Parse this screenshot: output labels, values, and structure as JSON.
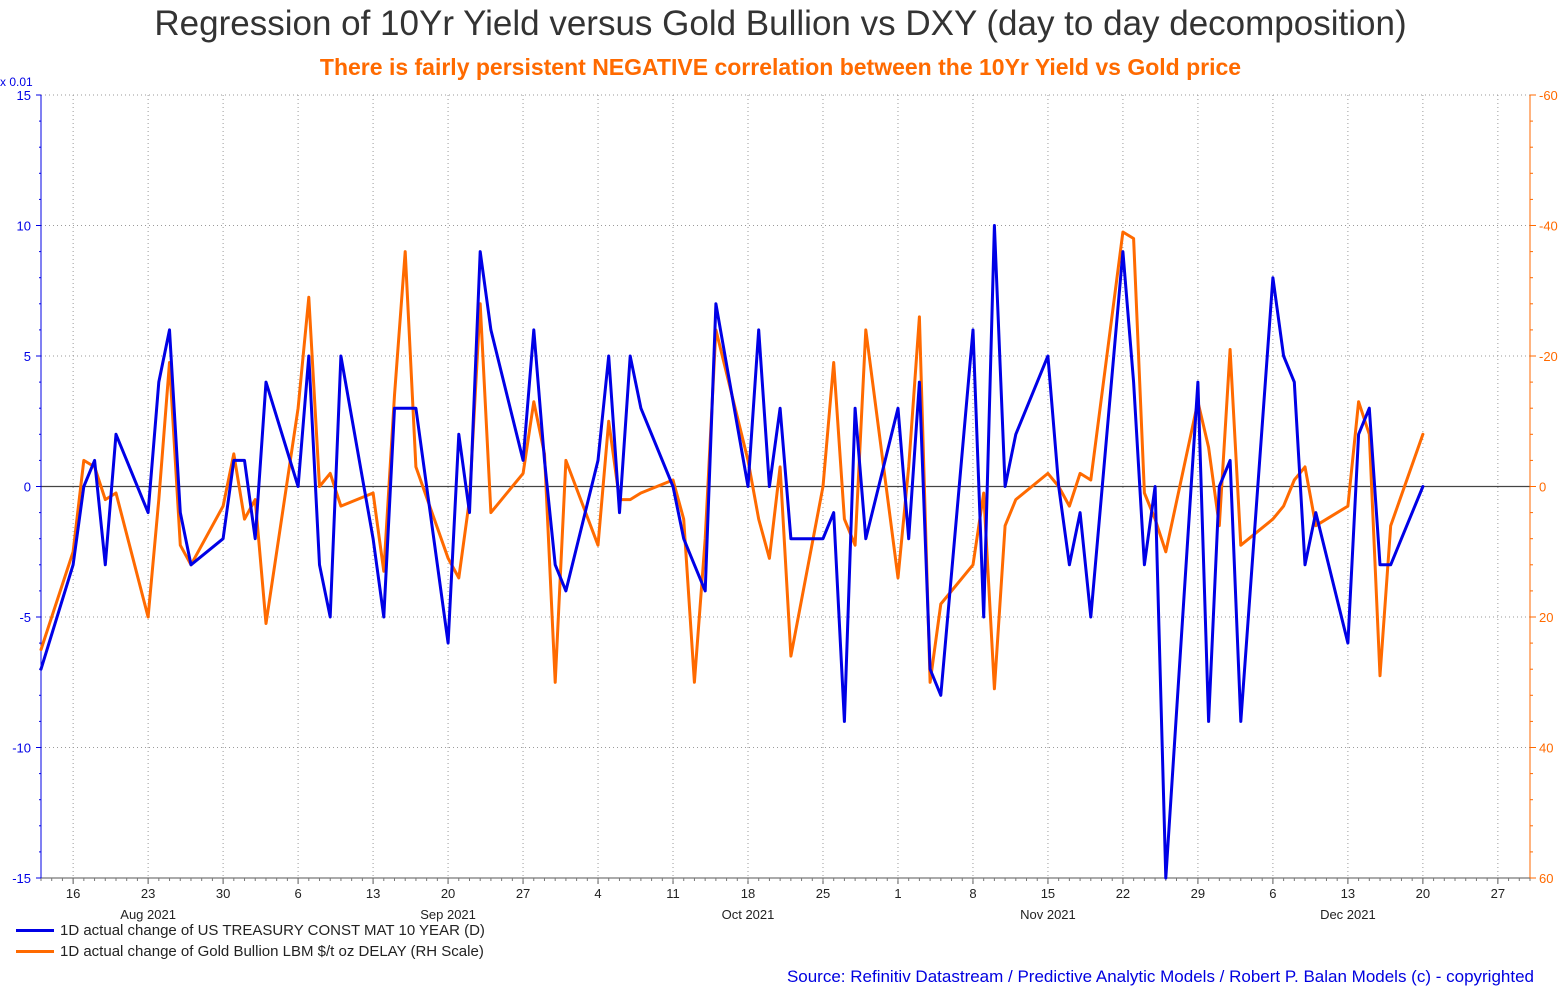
{
  "title": "Regression of 10Yr Yield versus Gold Bullion vs DXY (day to day decomposition)",
  "subtitle": "There is fairly persistent NEGATIVE correlation between the 10Yr Yield vs Gold price",
  "source": "Source: Refinitiv Datastream / Predictive Analytic Models / Robert P. Balan Models (c) - copyrighted",
  "colors": {
    "yield": "#0000e6",
    "gold": "#ff6a00",
    "grid": "#9a9a9a",
    "zero": "#444444"
  },
  "chart_data": {
    "type": "line",
    "left_axis": {
      "unit_label": "x 0.01",
      "range": [
        -15,
        15
      ],
      "ticks": [
        15,
        10,
        5,
        0,
        -5,
        -10,
        -15
      ],
      "tick_labels": [
        "15",
        "10",
        "5",
        "0",
        "-5",
        "-10",
        "-15"
      ]
    },
    "right_axis": {
      "range": [
        -60,
        60
      ],
      "inverted": true,
      "ticks": [
        -60,
        -40,
        -20,
        0,
        20,
        40,
        60
      ],
      "tick_labels": [
        "-60",
        "-40",
        "-20",
        "0",
        "20",
        "40",
        "60"
      ]
    },
    "x_axis": {
      "range": [
        "2021-08-13",
        "2021-12-30"
      ],
      "ticks": [
        {
          "date": "2021-08-16",
          "label": "16"
        },
        {
          "date": "2021-08-23",
          "label": "23"
        },
        {
          "date": "2021-08-30",
          "label": "30"
        },
        {
          "date": "2021-09-06",
          "label": "6"
        },
        {
          "date": "2021-09-13",
          "label": "13"
        },
        {
          "date": "2021-09-20",
          "label": "20"
        },
        {
          "date": "2021-09-27",
          "label": "27"
        },
        {
          "date": "2021-10-04",
          "label": "4"
        },
        {
          "date": "2021-10-11",
          "label": "11"
        },
        {
          "date": "2021-10-18",
          "label": "18"
        },
        {
          "date": "2021-10-25",
          "label": "25"
        },
        {
          "date": "2021-11-01",
          "label": "1"
        },
        {
          "date": "2021-11-08",
          "label": "8"
        },
        {
          "date": "2021-11-15",
          "label": "15"
        },
        {
          "date": "2021-11-22",
          "label": "22"
        },
        {
          "date": "2021-11-29",
          "label": "29"
        },
        {
          "date": "2021-12-06",
          "label": "6"
        },
        {
          "date": "2021-12-13",
          "label": "13"
        },
        {
          "date": "2021-12-20",
          "label": "20"
        },
        {
          "date": "2021-12-27",
          "label": "27"
        }
      ],
      "month_labels": [
        {
          "date": "2021-08-23",
          "label": "Aug 2021"
        },
        {
          "date": "2021-09-20",
          "label": "Sep 2021"
        },
        {
          "date": "2021-10-18",
          "label": "Oct 2021"
        },
        {
          "date": "2021-11-15",
          "label": "Nov 2021"
        },
        {
          "date": "2021-12-13",
          "label": "Dec 2021"
        }
      ]
    },
    "grid": true,
    "legend_position": "bottom-left",
    "series": [
      {
        "name": "1D actual change of US TREASURY CONST MAT 10 YEAR (D)",
        "axis": "left",
        "color": "#0000e6",
        "points": [
          [
            "2021-08-13",
            -7
          ],
          [
            "2021-08-16",
            -3
          ],
          [
            "2021-08-17",
            0
          ],
          [
            "2021-08-18",
            1
          ],
          [
            "2021-08-19",
            -3
          ],
          [
            "2021-08-20",
            2
          ],
          [
            "2021-08-23",
            -1
          ],
          [
            "2021-08-24",
            4
          ],
          [
            "2021-08-25",
            6
          ],
          [
            "2021-08-26",
            -1
          ],
          [
            "2021-08-27",
            -3
          ],
          [
            "2021-08-30",
            -2
          ],
          [
            "2021-08-31",
            1
          ],
          [
            "2021-09-01",
            1
          ],
          [
            "2021-09-02",
            -2
          ],
          [
            "2021-09-03",
            4
          ],
          [
            "2021-09-06",
            0
          ],
          [
            "2021-09-07",
            5
          ],
          [
            "2021-09-08",
            -3
          ],
          [
            "2021-09-09",
            -5
          ],
          [
            "2021-09-10",
            5
          ],
          [
            "2021-09-13",
            -2
          ],
          [
            "2021-09-14",
            -5
          ],
          [
            "2021-09-15",
            3
          ],
          [
            "2021-09-16",
            3
          ],
          [
            "2021-09-17",
            3
          ],
          [
            "2021-09-20",
            -6
          ],
          [
            "2021-09-21",
            2
          ],
          [
            "2021-09-22",
            -1
          ],
          [
            "2021-09-23",
            9
          ],
          [
            "2021-09-24",
            6
          ],
          [
            "2021-09-27",
            1
          ],
          [
            "2021-09-28",
            6
          ],
          [
            "2021-09-29",
            1
          ],
          [
            "2021-09-30",
            -3
          ],
          [
            "2021-10-01",
            -4
          ],
          [
            "2021-10-04",
            1
          ],
          [
            "2021-10-05",
            5
          ],
          [
            "2021-10-06",
            -1
          ],
          [
            "2021-10-07",
            5
          ],
          [
            "2021-10-08",
            3
          ],
          [
            "2021-10-11",
            0
          ],
          [
            "2021-10-12",
            -2
          ],
          [
            "2021-10-13",
            -3
          ],
          [
            "2021-10-14",
            -4
          ],
          [
            "2021-10-15",
            7
          ],
          [
            "2021-10-18",
            0
          ],
          [
            "2021-10-19",
            6
          ],
          [
            "2021-10-20",
            0
          ],
          [
            "2021-10-21",
            3
          ],
          [
            "2021-10-22",
            -2
          ],
          [
            "2021-10-25",
            -2
          ],
          [
            "2021-10-26",
            -1
          ],
          [
            "2021-10-27",
            -9
          ],
          [
            "2021-10-28",
            3
          ],
          [
            "2021-10-29",
            -2
          ],
          [
            "2021-11-01",
            3
          ],
          [
            "2021-11-02",
            -2
          ],
          [
            "2021-11-03",
            4
          ],
          [
            "2021-11-04",
            -7
          ],
          [
            "2021-11-05",
            -8
          ],
          [
            "2021-11-08",
            6
          ],
          [
            "2021-11-09",
            -5
          ],
          [
            "2021-11-10",
            10
          ],
          [
            "2021-11-11",
            0
          ],
          [
            "2021-11-12",
            2
          ],
          [
            "2021-11-15",
            5
          ],
          [
            "2021-11-16",
            0
          ],
          [
            "2021-11-17",
            -3
          ],
          [
            "2021-11-18",
            -1
          ],
          [
            "2021-11-19",
            -5
          ],
          [
            "2021-11-22",
            9
          ],
          [
            "2021-11-23",
            4
          ],
          [
            "2021-11-24",
            -3
          ],
          [
            "2021-11-25",
            0
          ],
          [
            "2021-11-26",
            -15
          ],
          [
            "2021-11-29",
            4
          ],
          [
            "2021-11-30",
            -9
          ],
          [
            "2021-12-01",
            0
          ],
          [
            "2021-12-02",
            1
          ],
          [
            "2021-12-03",
            -9
          ],
          [
            "2021-12-06",
            8
          ],
          [
            "2021-12-07",
            5
          ],
          [
            "2021-12-08",
            4
          ],
          [
            "2021-12-09",
            -3
          ],
          [
            "2021-12-10",
            -1
          ],
          [
            "2021-12-13",
            -6
          ],
          [
            "2021-12-14",
            2
          ],
          [
            "2021-12-15",
            3
          ],
          [
            "2021-12-16",
            -3
          ],
          [
            "2021-12-17",
            -3
          ],
          [
            "2021-12-20",
            0
          ]
        ]
      },
      {
        "name": "1D actual change of Gold Bullion LBM $/t oz DELAY (RH Scale)",
        "axis": "right",
        "color": "#ff6a00",
        "points": [
          [
            "2021-08-13",
            25
          ],
          [
            "2021-08-16",
            10
          ],
          [
            "2021-08-17",
            -4
          ],
          [
            "2021-08-18",
            -3
          ],
          [
            "2021-08-19",
            2
          ],
          [
            "2021-08-20",
            1
          ],
          [
            "2021-08-23",
            20
          ],
          [
            "2021-08-24",
            2
          ],
          [
            "2021-08-25",
            -19
          ],
          [
            "2021-08-26",
            9
          ],
          [
            "2021-08-27",
            12
          ],
          [
            "2021-08-30",
            3
          ],
          [
            "2021-08-31",
            -5
          ],
          [
            "2021-09-01",
            5
          ],
          [
            "2021-09-02",
            2
          ],
          [
            "2021-09-03",
            21
          ],
          [
            "2021-09-06",
            -12
          ],
          [
            "2021-09-07",
            -29
          ],
          [
            "2021-09-08",
            0
          ],
          [
            "2021-09-09",
            -2
          ],
          [
            "2021-09-10",
            3
          ],
          [
            "2021-09-13",
            1
          ],
          [
            "2021-09-14",
            13
          ],
          [
            "2021-09-15",
            -14
          ],
          [
            "2021-09-16",
            -36
          ],
          [
            "2021-09-17",
            -3
          ],
          [
            "2021-09-20",
            11
          ],
          [
            "2021-09-21",
            14
          ],
          [
            "2021-09-22",
            2
          ],
          [
            "2021-09-23",
            -28
          ],
          [
            "2021-09-24",
            4
          ],
          [
            "2021-09-27",
            -2
          ],
          [
            "2021-09-28",
            -13
          ],
          [
            "2021-09-29",
            -5
          ],
          [
            "2021-09-30",
            30
          ],
          [
            "2021-10-01",
            -4
          ],
          [
            "2021-10-04",
            9
          ],
          [
            "2021-10-05",
            -10
          ],
          [
            "2021-10-06",
            2
          ],
          [
            "2021-10-07",
            2
          ],
          [
            "2021-10-08",
            1
          ],
          [
            "2021-10-11",
            -1
          ],
          [
            "2021-10-12",
            5
          ],
          [
            "2021-10-13",
            30
          ],
          [
            "2021-10-14",
            8
          ],
          [
            "2021-10-15",
            -24
          ],
          [
            "2021-10-18",
            -4
          ],
          [
            "2021-10-19",
            5
          ],
          [
            "2021-10-20",
            11
          ],
          [
            "2021-10-21",
            -3
          ],
          [
            "2021-10-22",
            26
          ],
          [
            "2021-10-25",
            0
          ],
          [
            "2021-10-26",
            -19
          ],
          [
            "2021-10-27",
            5
          ],
          [
            "2021-10-28",
            9
          ],
          [
            "2021-10-29",
            -24
          ],
          [
            "2021-11-01",
            14
          ],
          [
            "2021-11-02",
            -3
          ],
          [
            "2021-11-03",
            -26
          ],
          [
            "2021-11-04",
            30
          ],
          [
            "2021-11-05",
            18
          ],
          [
            "2021-11-08",
            12
          ],
          [
            "2021-11-09",
            1
          ],
          [
            "2021-11-10",
            31
          ],
          [
            "2021-11-11",
            6
          ],
          [
            "2021-11-12",
            2
          ],
          [
            "2021-11-15",
            -2
          ],
          [
            "2021-11-16",
            0
          ],
          [
            "2021-11-17",
            3
          ],
          [
            "2021-11-18",
            -2
          ],
          [
            "2021-11-19",
            -1
          ],
          [
            "2021-11-22",
            -39
          ],
          [
            "2021-11-23",
            -38
          ],
          [
            "2021-11-24",
            1
          ],
          [
            "2021-11-25",
            5
          ],
          [
            "2021-11-26",
            10
          ],
          [
            "2021-11-29",
            -13
          ],
          [
            "2021-11-30",
            -6
          ],
          [
            "2021-12-01",
            6
          ],
          [
            "2021-12-02",
            -21
          ],
          [
            "2021-12-03",
            9
          ],
          [
            "2021-12-06",
            5
          ],
          [
            "2021-12-07",
            3
          ],
          [
            "2021-12-08",
            -1
          ],
          [
            "2021-12-09",
            -3
          ],
          [
            "2021-12-10",
            6
          ],
          [
            "2021-12-13",
            3
          ],
          [
            "2021-12-14",
            -13
          ],
          [
            "2021-12-15",
            -8
          ],
          [
            "2021-12-16",
            29
          ],
          [
            "2021-12-17",
            6
          ],
          [
            "2021-12-20",
            -8
          ]
        ]
      }
    ]
  }
}
